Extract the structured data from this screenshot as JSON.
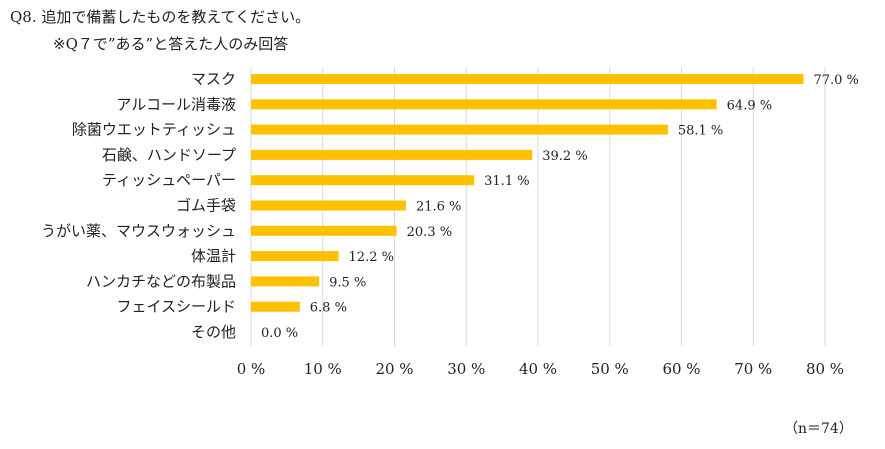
{
  "title": "Q8. 追加で備蓄したものを教えてください。",
  "subtitle": "※Q７で”ある”と答えた人のみ回答",
  "note": "（n＝74）",
  "colors": {
    "bar": "#ffc000",
    "grid": "#d9d9d9",
    "text": "#222222"
  },
  "chart_data": {
    "type": "bar",
    "orientation": "horizontal",
    "categories": [
      "マスク",
      "アルコール消毒液",
      "除菌ウエットティッシュ",
      "石鹸、ハンドソープ",
      "ティッシュペーパー",
      "ゴム手袋",
      "うがい薬、マウスウォッシュ",
      "体温計",
      "ハンカチなどの布製品",
      "フェイスシールド",
      "その他"
    ],
    "values": [
      77.0,
      64.9,
      58.1,
      39.2,
      31.1,
      21.6,
      20.3,
      12.2,
      9.5,
      6.8,
      0.0
    ],
    "value_labels": [
      "77.0 %",
      "64.9 %",
      "58.1 %",
      "39.2 %",
      "31.1 %",
      "21.6 %",
      "20.3 %",
      "12.2 %",
      "9.5 %",
      "6.8 %",
      "0.0 %"
    ],
    "xlim": [
      0,
      80
    ],
    "xticks": [
      0,
      10,
      20,
      30,
      40,
      50,
      60,
      70,
      80
    ],
    "xtick_labels": [
      "0 %",
      "10 %",
      "20 %",
      "30 %",
      "40 %",
      "50 %",
      "60 %",
      "70 %",
      "80 %"
    ],
    "grid": true,
    "legend": "none"
  }
}
